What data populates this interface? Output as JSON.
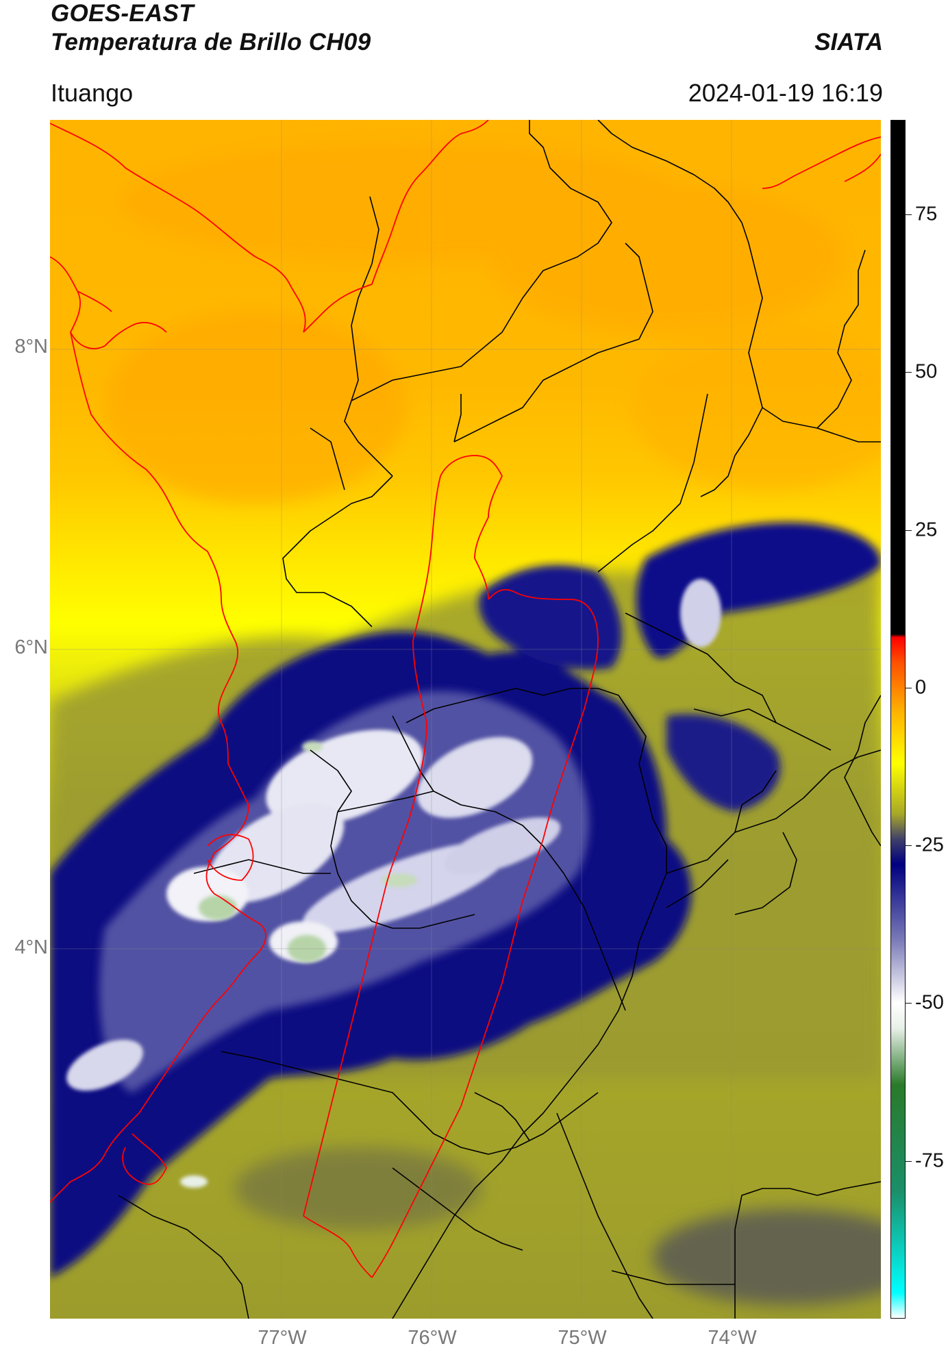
{
  "header": {
    "satellite": "GOES-EAST",
    "product": "Temperatura de Brillo CH09",
    "brand": "SIATA",
    "region": "Ituango",
    "datetime": "2024-01-19 16:19"
  },
  "map": {
    "lat_labels": [
      "8°N",
      "6°N",
      "4°N"
    ],
    "lon_labels": [
      "77°W",
      "76°W",
      "75°W",
      "74°W"
    ],
    "lat_values": [
      8,
      6,
      4
    ],
    "lon_values": [
      -77,
      -76,
      -75,
      -74
    ],
    "extent": {
      "lon_min": -78.55,
      "lon_max": -73.0,
      "lat_min": 1.65,
      "lat_max": 9.55
    },
    "colors": {
      "warm": "#ffb400",
      "yellow": "#ffff00",
      "olive": "#a8a828",
      "cold_navy": "#0a0a80",
      "cloud_white": "#f4f4f8",
      "border_national": "#ff0000",
      "border_departmental": "#000000"
    }
  },
  "colorbar": {
    "min": -100,
    "max": 90,
    "tick_labels": [
      "75",
      "50",
      "25",
      "0",
      "-25",
      "-50",
      "-75"
    ],
    "tick_values": [
      75,
      50,
      25,
      0,
      -25,
      -50,
      -75
    ],
    "stops": [
      {
        "v": -100,
        "c": "#ffffff"
      },
      {
        "v": -96,
        "c": "#00ffff"
      },
      {
        "v": -80,
        "c": "#1a8f6a"
      },
      {
        "v": -63,
        "c": "#2a7a2a"
      },
      {
        "v": -54,
        "c": "#e8f0e8"
      },
      {
        "v": -50,
        "c": "#ffffff"
      },
      {
        "v": -40,
        "c": "#7a7ab8"
      },
      {
        "v": -28,
        "c": "#000080"
      },
      {
        "v": -24,
        "c": "#40406a"
      },
      {
        "v": -20,
        "c": "#a8a828"
      },
      {
        "v": -12,
        "c": "#ffff00"
      },
      {
        "v": -4,
        "c": "#ffb400"
      },
      {
        "v": 4,
        "c": "#ff5000"
      },
      {
        "v": 8,
        "c": "#ff0000"
      },
      {
        "v": 8.5,
        "c": "#000000"
      },
      {
        "v": 90,
        "c": "#000000"
      }
    ]
  }
}
